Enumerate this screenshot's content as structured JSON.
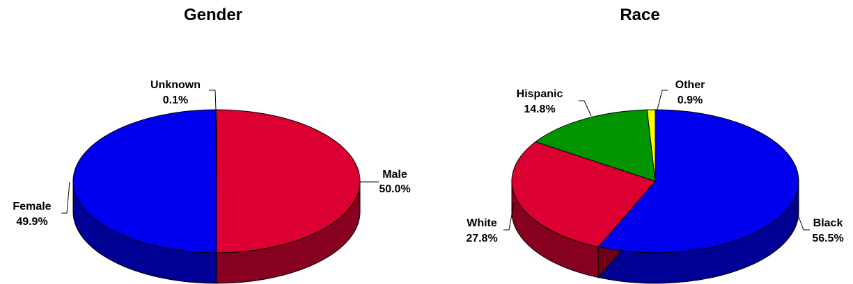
{
  "chart_data": [
    {
      "type": "pie",
      "title": "Gender",
      "slices": [
        {
          "label": "Male",
          "value": 50.0,
          "display": "50.0%",
          "color": "#dc0032"
        },
        {
          "label": "Female",
          "value": 49.9,
          "display": "49.9%",
          "color": "#0000ee"
        },
        {
          "label": "Unknown",
          "value": 0.1,
          "display": "0.1%",
          "color": "#ffff00"
        }
      ]
    },
    {
      "type": "pie",
      "title": "Race",
      "slices": [
        {
          "label": "Black",
          "value": 56.5,
          "display": "56.5%",
          "color": "#0000ee"
        },
        {
          "label": "White",
          "value": 27.8,
          "display": "27.8%",
          "color": "#dc0032"
        },
        {
          "label": "Hispanic",
          "value": 14.8,
          "display": "14.8%",
          "color": "#009400"
        },
        {
          "label": "Other",
          "value": 0.9,
          "display": "0.9%",
          "color": "#ffff00"
        }
      ]
    }
  ]
}
